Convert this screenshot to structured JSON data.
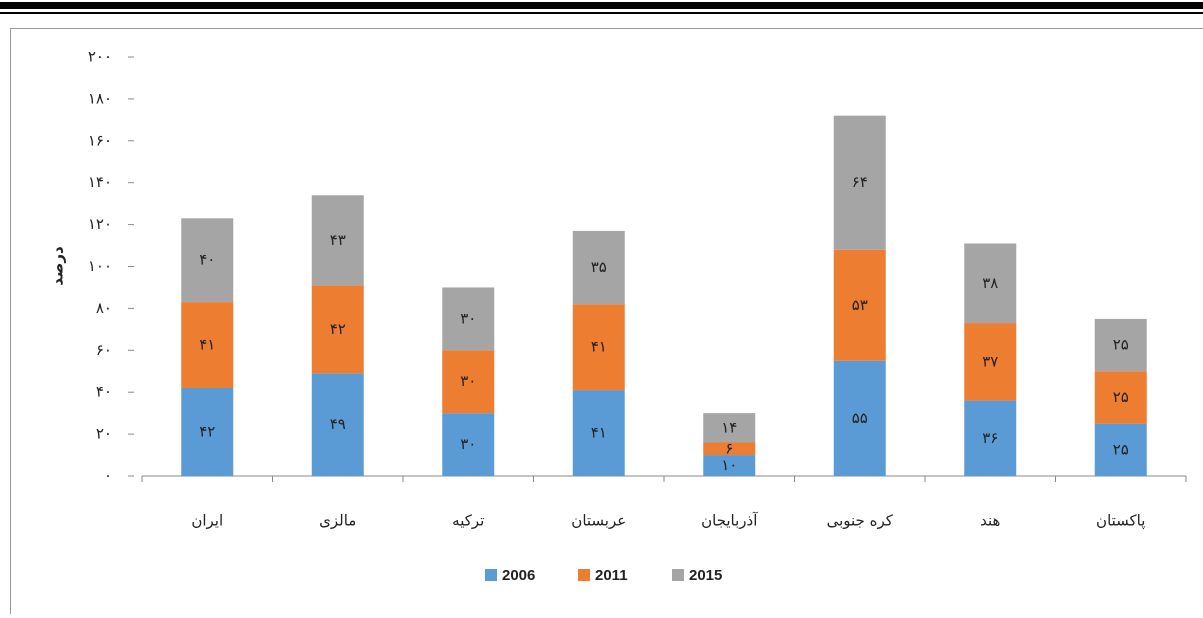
{
  "chart_data": {
    "type": "stacked_bar",
    "y_label": "درصد",
    "categories": [
      "ایران",
      "مالزی",
      "ترکیه",
      "عربستان",
      "آذربایجان",
      "کره جنوبی",
      "هند",
      "پاکستان"
    ],
    "series": [
      {
        "name": "2006",
        "color": "#5b9bd5",
        "values": [
          42,
          49,
          30,
          41,
          10,
          55,
          36,
          25
        ],
        "value_labels": [
          "۴۲",
          "۴۹",
          "۳۰",
          "۴۱",
          "۱۰",
          "۵۵",
          "۳۶",
          "۲۵"
        ]
      },
      {
        "name": "2011",
        "color": "#ed7d31",
        "values": [
          41,
          42,
          30,
          41,
          6,
          53,
          37,
          25
        ],
        "value_labels": [
          "۴۱",
          "۴۲",
          "۳۰",
          "۴۱",
          "۶",
          "۵۳",
          "۳۷",
          "۲۵"
        ]
      },
      {
        "name": "2015",
        "color": "#a5a5a5",
        "values": [
          40,
          43,
          30,
          35,
          14,
          64,
          38,
          25
        ],
        "value_labels": [
          "۴۰",
          "۴۳",
          "۳۰",
          "۳۵",
          "۱۴",
          "۶۴",
          "۳۸",
          "۲۵"
        ]
      }
    ],
    "ylim": [
      0,
      200
    ],
    "yticks": [
      {
        "value": 0,
        "label": "۰"
      },
      {
        "value": 20,
        "label": "۲۰"
      },
      {
        "value": 40,
        "label": "۴۰"
      },
      {
        "value": 60,
        "label": "۶۰"
      },
      {
        "value": 80,
        "label": "۸۰"
      },
      {
        "value": 100,
        "label": "۱۰۰"
      },
      {
        "value": 120,
        "label": "۱۲۰"
      },
      {
        "value": 140,
        "label": "۱۴۰"
      },
      {
        "value": 160,
        "label": "۱۶۰"
      },
      {
        "value": 180,
        "label": "۱۸۰"
      },
      {
        "value": 200,
        "label": "۲۰۰"
      }
    ],
    "grid": false,
    "legend": "bottom"
  }
}
